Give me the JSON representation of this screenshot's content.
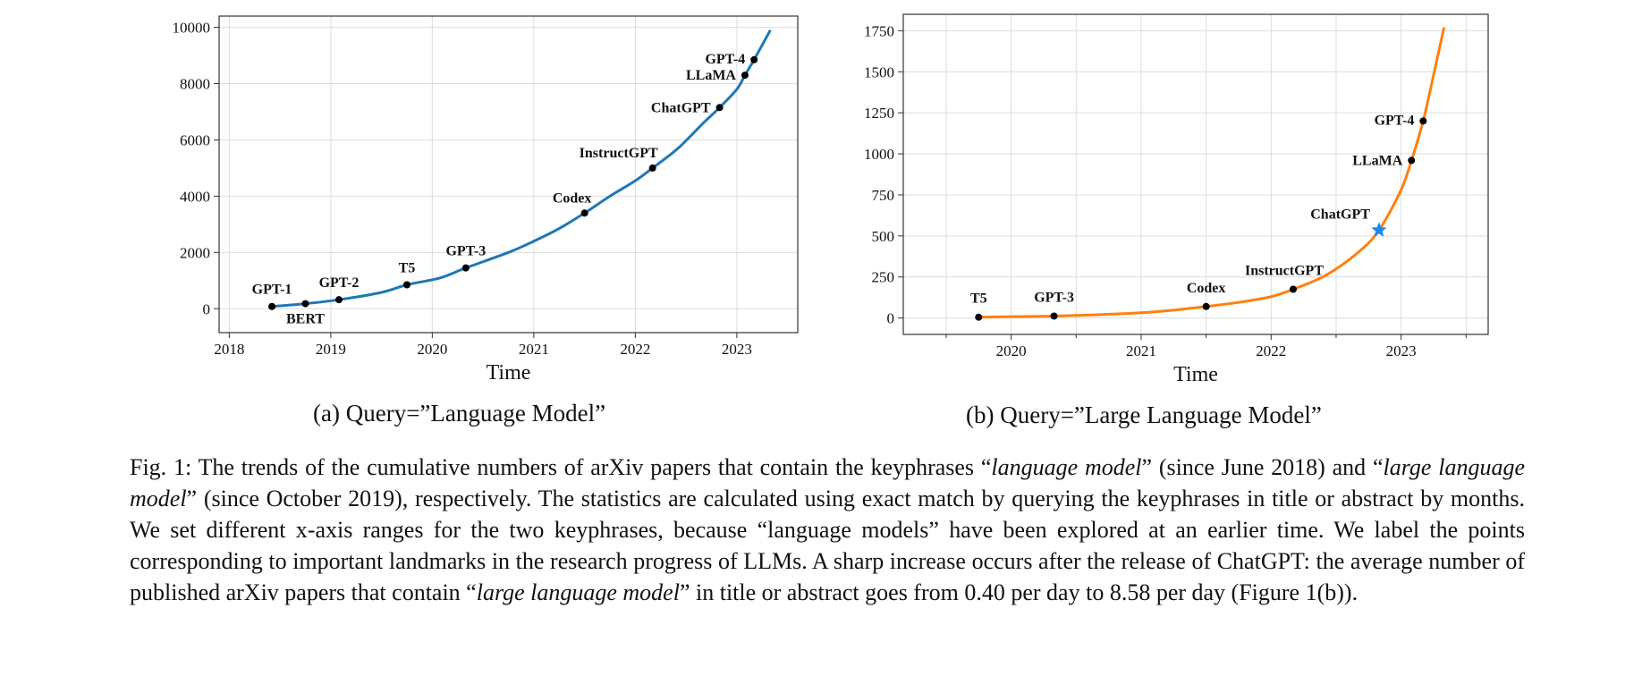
{
  "chart_data": [
    {
      "type": "line",
      "xlabel": "Time",
      "ylabel": "",
      "xlim": [
        2017.9,
        2023.6
      ],
      "ylim": [
        -850,
        10400
      ],
      "xticks": [
        2018,
        2019,
        2020,
        2021,
        2022,
        2023
      ],
      "yticks": [
        0,
        2000,
        4000,
        6000,
        8000,
        10000
      ],
      "grid": true,
      "line_color": "#1f77b4",
      "series": [
        {
          "name": "Language Model",
          "x": [
            2018.42,
            2018.75,
            2019.08,
            2019.5,
            2019.75,
            2020.08,
            2020.33,
            2020.75,
            2021.0,
            2021.25,
            2021.5,
            2021.75,
            2022.0,
            2022.17,
            2022.42,
            2022.67,
            2022.83,
            2023.0,
            2023.08,
            2023.17,
            2023.33
          ],
          "y": [
            80,
            180,
            320,
            580,
            850,
            1100,
            1450,
            2000,
            2400,
            2850,
            3400,
            4000,
            4550,
            5000,
            5700,
            6600,
            7150,
            7800,
            8300,
            8850,
            9900
          ]
        }
      ],
      "landmarks": [
        {
          "label": "GPT-1",
          "x": 2018.42,
          "y": 80
        },
        {
          "label": "BERT",
          "x": 2018.75,
          "y": 180
        },
        {
          "label": "GPT-2",
          "x": 2019.08,
          "y": 320
        },
        {
          "label": "T5",
          "x": 2019.75,
          "y": 850
        },
        {
          "label": "GPT-3",
          "x": 2020.33,
          "y": 1450
        },
        {
          "label": "Codex",
          "x": 2021.5,
          "y": 3400
        },
        {
          "label": "InstructGPT",
          "x": 2022.17,
          "y": 5000
        },
        {
          "label": "ChatGPT",
          "x": 2022.83,
          "y": 7150
        },
        {
          "label": "LLaMA",
          "x": 2023.08,
          "y": 8300
        },
        {
          "label": "GPT-4",
          "x": 2023.17,
          "y": 8850
        }
      ]
    },
    {
      "type": "line",
      "xlabel": "Time",
      "ylabel": "",
      "xlim": [
        2019.17,
        2023.67
      ],
      "ylim": [
        -100,
        1850
      ],
      "xticks": [
        2020,
        2021,
        2022,
        2023
      ],
      "yticks": [
        0,
        250,
        500,
        750,
        1000,
        1250,
        1500,
        1750
      ],
      "grid": true,
      "line_color": "#ff7f0e",
      "series": [
        {
          "name": "Large Language Model",
          "x": [
            2019.75,
            2020.0,
            2020.33,
            2020.67,
            2021.0,
            2021.25,
            2021.5,
            2021.75,
            2022.0,
            2022.17,
            2022.42,
            2022.67,
            2022.83,
            2023.0,
            2023.08,
            2023.17,
            2023.25,
            2023.33
          ],
          "y": [
            5,
            8,
            12,
            20,
            32,
            48,
            70,
            95,
            130,
            175,
            260,
            400,
            535,
            780,
            960,
            1200,
            1480,
            1770
          ]
        }
      ],
      "landmarks": [
        {
          "label": "T5",
          "x": 2019.75,
          "y": 5
        },
        {
          "label": "GPT-3",
          "x": 2020.33,
          "y": 12
        },
        {
          "label": "Codex",
          "x": 2021.5,
          "y": 70
        },
        {
          "label": "InstructGPT",
          "x": 2022.17,
          "y": 175
        },
        {
          "label": "ChatGPT",
          "x": 2022.83,
          "y": 535,
          "marker": "star"
        },
        {
          "label": "LLaMA",
          "x": 2023.08,
          "y": 960
        },
        {
          "label": "GPT-4",
          "x": 2023.17,
          "y": 1200
        }
      ]
    }
  ],
  "subcaptions": {
    "a": "(a) Query=”Language Model”",
    "b": "(b) Query=”Large Language Model”"
  },
  "caption": {
    "p1": "Fig. 1: The trends of the cumulative numbers of arXiv papers that contain the keyphrases “",
    "i1": "language model",
    "p2": "” (since June 2018) and “",
    "i2": "large language model",
    "p3": "” (since October 2019), respectively. The statistics are calculated using exact match by querying the keyphrases in title or abstract by months. We set different x-axis ranges for the two keyphrases, because “language models” have been explored at an earlier time. We label the points corresponding to important landmarks in the research progress of LLMs. A sharp increase occurs after the release of ChatGPT: the average number of published arXiv papers that contain “",
    "i3": "large language model",
    "p4": "” in title or abstract goes from 0.40 per day to 8.58 per day (Figure 1(b))."
  }
}
